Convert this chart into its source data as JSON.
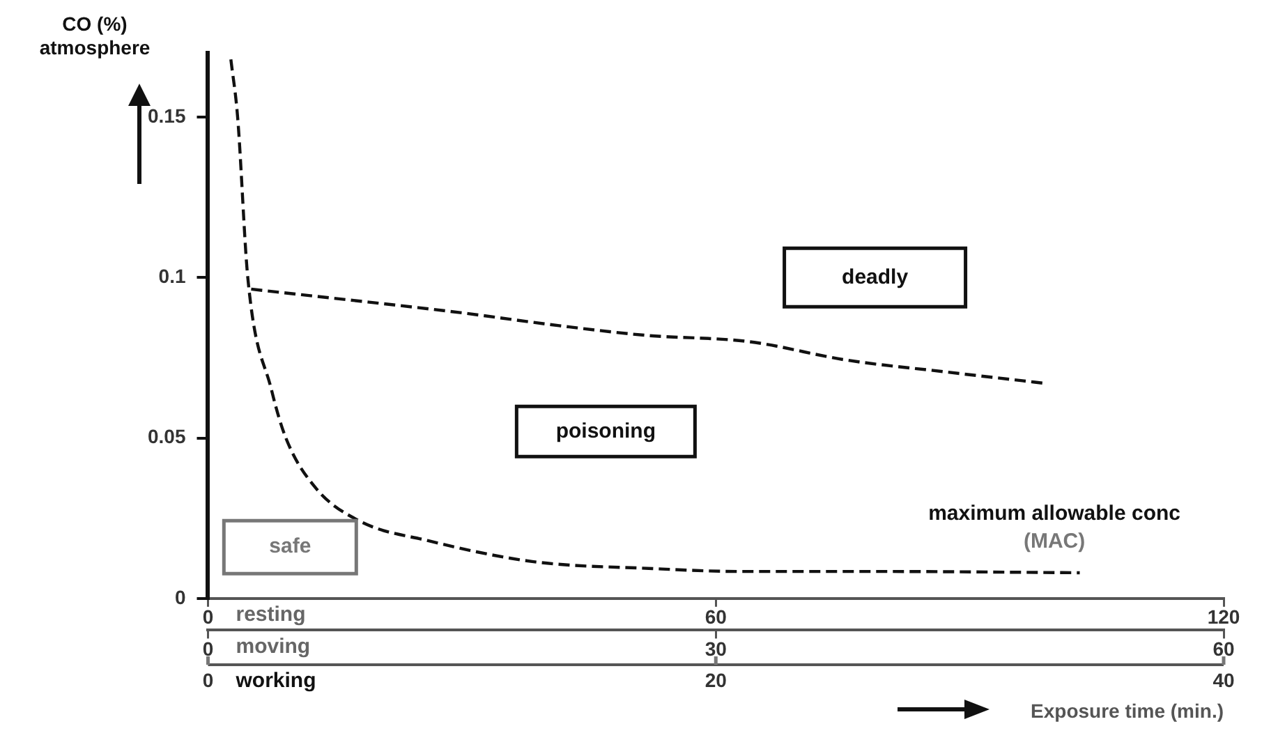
{
  "chart_data": {
    "type": "line",
    "ylabel": "CO (%)\natmosphere",
    "xlabel": "Exposure time (min.)",
    "series": [
      {
        "color": "#111111",
        "x": [
          2.7,
          3.5,
          4.7,
          7.5,
          9.2,
          12.7,
          18,
          26,
          38.3,
          52.5,
          63,
          79,
          103
        ],
        "values": [
          0.168,
          0.15,
          0.1,
          0.065,
          0.05,
          0.0345,
          0.024,
          0.018,
          0.0115,
          0.0093,
          0.0084,
          0.0084,
          0.008
        ]
      },
      {
        "color": "#111111",
        "x": [
          5.1,
          30,
          41.5,
          51.7,
          64,
          75.4,
          86.8,
          99
        ],
        "values": [
          0.0964,
          0.089,
          0.085,
          0.082,
          0.08,
          0.0743,
          0.0707,
          0.067
        ]
      }
    ],
    "xlim": [
      0,
      120
    ],
    "xticks": [
      0,
      60,
      120
    ],
    "x2lim": [
      0,
      60
    ],
    "x2ticks": [
      0,
      30,
      60
    ],
    "ylim": [
      0,
      0.17
    ],
    "yticks": [
      0,
      0.05,
      0.1,
      0.15
    ],
    "grid": false,
    "legend": false,
    "marker": "none",
    "line_style": "dashed",
    "annotations": [
      "deadly",
      "poisoning",
      "safe",
      "maximum allowable conc\n(MAC)",
      "resting",
      "moving",
      "working",
      "0",
      "20",
      "40"
    ]
  }
}
